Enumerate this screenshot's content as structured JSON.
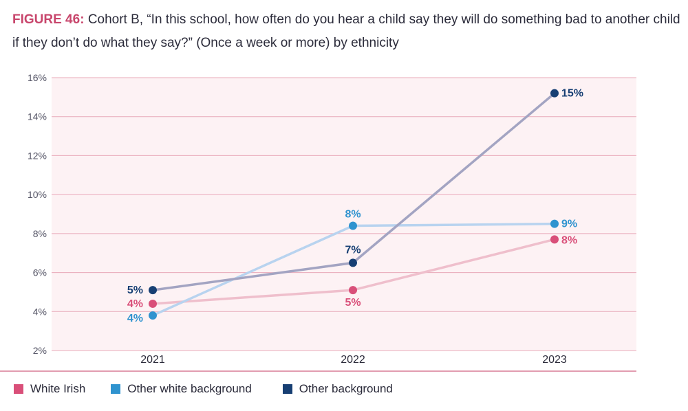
{
  "title": {
    "figure_label": "FIGURE 46:",
    "text": "Cohort B, “In this school, how often do you hear a child say they will do something bad to another child if they don’t do what they say?” (Once a week or more) by ethnicity"
  },
  "chart_data": {
    "type": "line",
    "x": [
      "2021",
      "2022",
      "2023"
    ],
    "ylim": [
      2,
      16
    ],
    "yticks": [
      2,
      4,
      6,
      8,
      10,
      12,
      14,
      16
    ],
    "ytick_labels": [
      "2%",
      "4%",
      "6%",
      "8%",
      "10%",
      "12%",
      "14%",
      "16%"
    ],
    "series": [
      {
        "key": "white_irish",
        "name": "White Irish",
        "color": "#d94f79",
        "line_color": "#efbfcc",
        "values": [
          4.4,
          5.1,
          7.7
        ],
        "labels": [
          "4%",
          "5%",
          "8%"
        ]
      },
      {
        "key": "other_white",
        "name": "Other white background",
        "color": "#2f93cf",
        "line_color": "#b8d3ef",
        "values": [
          3.8,
          8.4,
          8.5
        ],
        "labels": [
          "4%",
          "8%",
          "9%"
        ]
      },
      {
        "key": "other",
        "name": "Other background",
        "color": "#173f73",
        "line_color": "#a3a4c2",
        "values": [
          5.1,
          6.5,
          15.2
        ],
        "labels": [
          "5%",
          "7%",
          "15%"
        ]
      }
    ]
  }
}
